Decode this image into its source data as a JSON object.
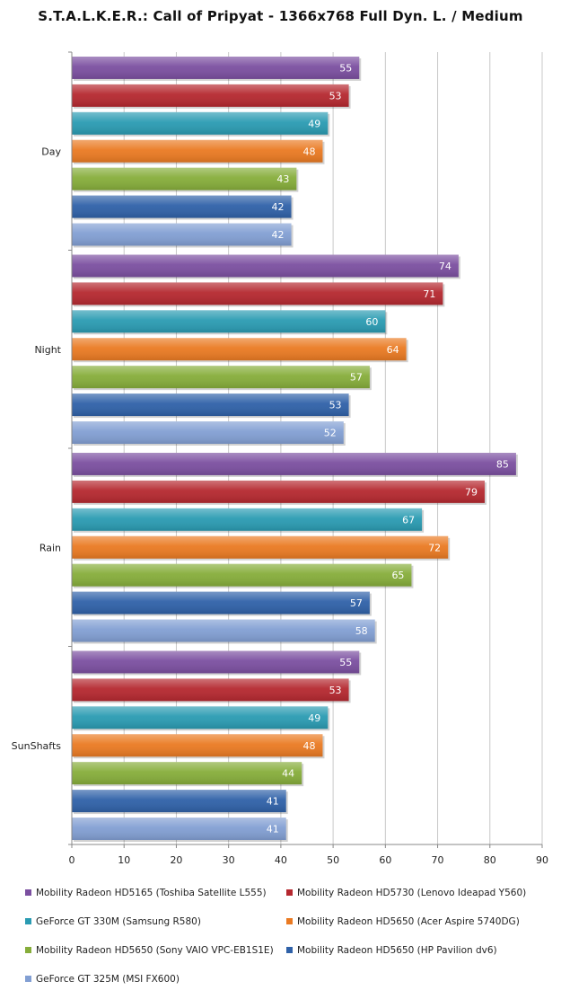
{
  "chart_data": {
    "type": "bar",
    "orientation": "horizontal",
    "title": "S.T.A.L.K.E.R.: Call of Pripyat - 1366x768 Full Dyn. L. / Medium",
    "xlabel": "",
    "ylabel": "",
    "categories": [
      "Day",
      "Night",
      "Rain",
      "SunShafts"
    ],
    "xlim": [
      0,
      90
    ],
    "x_ticks": [
      "0",
      "10",
      "20",
      "30",
      "40",
      "50",
      "60",
      "70",
      "80",
      "90"
    ],
    "grid": true,
    "legend_position": "bottom",
    "series": [
      {
        "name": "Mobility Radeon HD5165 (Toshiba Satellite L555)",
        "color": "#7b4fa0",
        "values": [
          55,
          74,
          85,
          55
        ]
      },
      {
        "name": "Mobility Radeon HD5730 (Lenovo Ideapad Y560)",
        "color": "#b5282f",
        "values": [
          53,
          71,
          79,
          53
        ]
      },
      {
        "name": "GeForce GT 330M (Samsung R580)",
        "color": "#2a9bb2",
        "values": [
          49,
          60,
          67,
          49
        ]
      },
      {
        "name": "Mobility Radeon HD5650 (Acer Aspire 5740DG)",
        "color": "#ea7a22",
        "values": [
          48,
          64,
          72,
          48
        ]
      },
      {
        "name": "Mobility Radeon HD5650 (Sony VAIO VPC-EB1S1E)",
        "color": "#86ad3a",
        "values": [
          43,
          57,
          65,
          44
        ]
      },
      {
        "name": "Mobility Radeon HD5650 (HP Pavilion dv6)",
        "color": "#2f61a8",
        "values": [
          42,
          53,
          57,
          41
        ]
      },
      {
        "name": "GeForce GT 325M (MSI FX600)",
        "color": "#829fd3",
        "values": [
          42,
          52,
          58,
          41
        ]
      }
    ]
  }
}
